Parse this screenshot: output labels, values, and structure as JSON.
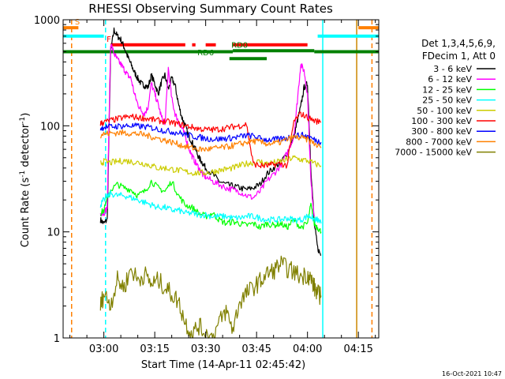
{
  "chart_data": {
    "type": "line",
    "title": "RHESSI Observing Summary Count Rates",
    "xlabel": "Start Time (14-Apr-11 02:45:42)",
    "ylabel_main": "Count Rate (s",
    "ylabel_sup1": "-1",
    "ylabel_mid": " detector",
    "ylabel_sup2": "-1",
    "ylabel_end": ")",
    "yscale": "log",
    "ylim": [
      1,
      1000
    ],
    "xlim_minutes": [
      -12,
      81
    ],
    "xticks": [
      {
        "label": "03:00",
        "t": 0
      },
      {
        "label": "03:15",
        "t": 15
      },
      {
        "label": "03:30",
        "t": 30
      },
      {
        "label": "03:45",
        "t": 45
      },
      {
        "label": "04:00",
        "t": 60
      },
      {
        "label": "04:15",
        "t": 75
      }
    ],
    "yticks": [
      {
        "label": "1",
        "v": 1
      },
      {
        "label": "10",
        "v": 10
      },
      {
        "label": "100",
        "v": 100
      },
      {
        "label": "1000",
        "v": 1000
      }
    ],
    "legend_header": [
      "Det 1,3,4,5,6,9,",
      "FDecim 1, Att 0"
    ],
    "series": [
      {
        "name": "3 - 6 keV",
        "color": "#000000",
        "t": [
          -1,
          0,
          1,
          2,
          3,
          4,
          5,
          6,
          7,
          8,
          9,
          10,
          11,
          12,
          13,
          14,
          15,
          16,
          17,
          18,
          19,
          20,
          21,
          22,
          23,
          24,
          25,
          26,
          27,
          28,
          29,
          30,
          32,
          34,
          36,
          38,
          40,
          42,
          44,
          46,
          48,
          50,
          52,
          54,
          56,
          57,
          58,
          59,
          60,
          61,
          62,
          63,
          64
        ],
        "v": [
          13,
          12,
          13,
          500,
          800,
          700,
          650,
          550,
          450,
          380,
          320,
          280,
          250,
          240,
          230,
          300,
          250,
          200,
          260,
          300,
          220,
          280,
          240,
          160,
          120,
          100,
          80,
          70,
          60,
          50,
          45,
          40,
          35,
          30,
          28,
          27,
          26,
          25,
          26,
          28,
          35,
          40,
          45,
          55,
          80,
          110,
          150,
          230,
          250,
          40,
          12,
          7,
          6
        ]
      },
      {
        "name": "6 - 12 keV",
        "color": "#ff00ff",
        "t": [
          -1,
          0,
          1,
          2,
          3,
          4,
          5,
          6,
          7,
          8,
          9,
          10,
          11,
          12,
          13,
          14,
          15,
          16,
          17,
          18,
          19,
          20,
          21,
          22,
          23,
          24,
          25,
          26,
          27,
          28,
          29,
          30,
          32,
          34,
          36,
          38,
          40,
          42,
          44,
          46,
          48,
          50,
          52,
          54,
          56,
          57,
          58,
          59,
          60,
          61,
          62
        ],
        "v": [
          15,
          15,
          17,
          600,
          480,
          420,
          380,
          340,
          300,
          280,
          200,
          160,
          140,
          130,
          150,
          250,
          200,
          160,
          120,
          100,
          350,
          180,
          130,
          110,
          95,
          80,
          62,
          52,
          45,
          40,
          35,
          33,
          30,
          28,
          26,
          25,
          24,
          22,
          21,
          24,
          30,
          35,
          42,
          55,
          80,
          170,
          380,
          330,
          200,
          30,
          14
        ]
      },
      {
        "name": "12 - 25 keV",
        "color": "#00ff00",
        "t": [
          -1,
          0,
          2,
          4,
          6,
          8,
          10,
          12,
          14,
          16,
          18,
          20,
          22,
          24,
          26,
          28,
          30,
          32,
          34,
          36,
          38,
          40,
          42,
          44,
          46,
          48,
          50,
          52,
          54,
          56,
          58,
          60,
          61,
          62,
          63,
          64
        ],
        "v": [
          15,
          16,
          25,
          28,
          26,
          25,
          22,
          24,
          30,
          26,
          24,
          30,
          22,
          18,
          17,
          15,
          14,
          15,
          13,
          12,
          12.5,
          12,
          11.5,
          12,
          11,
          12,
          11.5,
          12,
          11,
          13,
          11,
          12,
          18,
          12,
          11,
          10
        ]
      },
      {
        "name": "25 - 50 keV",
        "color": "#00ffff",
        "t": [
          -1,
          0,
          2,
          4,
          6,
          8,
          10,
          12,
          14,
          16,
          18,
          20,
          22,
          24,
          26,
          28,
          30,
          32,
          34,
          36,
          38,
          40,
          42,
          44,
          46,
          48,
          50,
          52,
          54,
          56,
          58,
          60,
          61,
          62,
          63,
          64
        ],
        "v": [
          18,
          20,
          23,
          22,
          22,
          21,
          20,
          19,
          18,
          17,
          17,
          16,
          16,
          15,
          15,
          14.5,
          14.5,
          14,
          14,
          14,
          13.5,
          13.5,
          14,
          14,
          13.5,
          13,
          13,
          13,
          13.5,
          13,
          13,
          14,
          14,
          13,
          13,
          12
        ]
      },
      {
        "name": "50 - 100 keV",
        "color": "#cccc00",
        "t": [
          -1,
          0,
          2,
          4,
          6,
          8,
          10,
          12,
          14,
          16,
          18,
          20,
          22,
          24,
          26,
          28,
          30,
          32,
          34,
          36,
          38,
          40,
          42,
          44,
          46,
          48,
          50,
          52,
          54,
          56,
          58,
          60,
          62,
          64
        ],
        "v": [
          44,
          46,
          45,
          46,
          47,
          46,
          45,
          44,
          42,
          40,
          40,
          39,
          38,
          37,
          36,
          36,
          36,
          37,
          38,
          39,
          40,
          42,
          44,
          45,
          46,
          44,
          45,
          46,
          48,
          50,
          48,
          47,
          44,
          42
        ]
      },
      {
        "name": "100 - 300 keV",
        "color": "#ff0000",
        "t": [
          -1,
          0,
          2,
          4,
          6,
          8,
          10,
          12,
          14,
          16,
          18,
          20,
          22,
          24,
          26,
          28,
          30,
          32,
          34,
          36,
          38,
          40,
          42,
          44,
          46,
          48,
          50,
          52,
          54,
          56,
          58,
          60,
          62,
          64
        ],
        "v": [
          105,
          108,
          112,
          116,
          120,
          122,
          120,
          118,
          115,
          112,
          110,
          107,
          104,
          100,
          97,
          94,
          92,
          92,
          93,
          95,
          98,
          100,
          104,
          44,
          42,
          42,
          43,
          44,
          42,
          110,
          130,
          120,
          112,
          108
        ]
      },
      {
        "name": "300 - 800 keV",
        "color": "#0000ff",
        "t": [
          -1,
          0,
          2,
          4,
          6,
          8,
          10,
          12,
          14,
          16,
          18,
          20,
          22,
          24,
          26,
          28,
          30,
          32,
          34,
          36,
          38,
          40,
          42,
          44,
          46,
          48,
          50,
          52,
          54,
          56,
          58,
          60,
          62,
          64
        ],
        "v": [
          95,
          97,
          98,
          99,
          100,
          100,
          99,
          98,
          96,
          93,
          90,
          88,
          86,
          83,
          80,
          78,
          76,
          75,
          75,
          76,
          77,
          79,
          81,
          80,
          76,
          74,
          74,
          75,
          77,
          80,
          82,
          80,
          74,
          70
        ]
      },
      {
        "name": "800 - 7000 keV",
        "color": "#ff8000",
        "t": [
          -1,
          0,
          2,
          4,
          6,
          8,
          10,
          12,
          14,
          16,
          18,
          20,
          22,
          24,
          26,
          28,
          30,
          32,
          34,
          36,
          38,
          40,
          42,
          44,
          46,
          48,
          50,
          52,
          54,
          56,
          58,
          60,
          62,
          64
        ],
        "v": [
          82,
          84,
          85,
          86,
          86,
          85,
          84,
          82,
          79,
          76,
          73,
          70,
          67,
          64,
          62,
          60,
          60,
          61,
          62,
          63,
          65,
          67,
          70,
          72,
          70,
          68,
          68,
          70,
          74,
          78,
          77,
          74,
          68,
          62
        ]
      },
      {
        "name": "7000 - 15000 keV",
        "color": "#808000",
        "t": [
          -1,
          0,
          2,
          4,
          6,
          8,
          10,
          12,
          14,
          16,
          18,
          20,
          22,
          24,
          26,
          28,
          30,
          32,
          34,
          36,
          38,
          40,
          42,
          44,
          46,
          48,
          50,
          52,
          54,
          56,
          58,
          60,
          61,
          62,
          63,
          64
        ],
        "v": [
          2,
          2.6,
          2.1,
          3.5,
          3.0,
          4.5,
          3.5,
          4.0,
          3.2,
          3.5,
          3.0,
          2.6,
          2.2,
          1.4,
          1.1,
          1.3,
          1.1,
          1.0,
          1.4,
          1.8,
          1.2,
          2.2,
          2.6,
          3.0,
          3.4,
          4.0,
          4.3,
          5.0,
          4.5,
          4.2,
          3.8,
          4.0,
          3.6,
          3.0,
          2.6,
          2.5
        ]
      }
    ],
    "flags": [
      {
        "name": "S",
        "label": "S",
        "color": "#ff8000",
        "level": 840,
        "segments": [
          [
            -12,
            -7.5
          ]
        ],
        "label_at": -7.8
      },
      {
        "name": "F",
        "label": "F",
        "color": "#ff0000",
        "level": 580,
        "segments": [
          [
            2,
            24
          ],
          [
            26,
            27
          ],
          [
            30,
            33
          ],
          [
            38,
            60
          ]
        ],
        "label_at": 1.5
      },
      {
        "name": "RD0",
        "label": "RD0",
        "color": "#008000",
        "level": 510,
        "segments": [
          [
            38,
            62
          ]
        ],
        "label_at": 40
      },
      {
        "name": "RD6",
        "label": "RD6",
        "color": "#008000",
        "level": 430,
        "segments": [
          [
            37,
            48
          ]
        ],
        "label_at": 30
      },
      {
        "name": "eclipse-top",
        "label": "",
        "color": "#00ffff",
        "level": 700,
        "segments": [
          [
            -12,
            0
          ],
          [
            63,
            81
          ]
        ],
        "label_at": null
      },
      {
        "name": "green-top",
        "label": "",
        "color": "#008000",
        "level": 500,
        "segments": [
          [
            -12,
            38
          ],
          [
            62,
            81
          ]
        ],
        "label_at": null
      },
      {
        "name": "orange-right",
        "label": "",
        "color": "#ff8000",
        "level": 840,
        "segments": [
          [
            75,
            81
          ]
        ],
        "label_at": null
      }
    ],
    "vlines": [
      {
        "t": -9.5,
        "color": "#ff8000",
        "dashed": true
      },
      {
        "t": 0.5,
        "color": "#00ffff",
        "dashed": true
      },
      {
        "t": 64.5,
        "color": "#00ffff",
        "dashed": false
      },
      {
        "t": 74.5,
        "color": "#cc8800",
        "dashed": false
      },
      {
        "t": 79,
        "color": "#ff8000",
        "dashed": true
      }
    ],
    "footer_date": "16-Oct-2021 10:47"
  }
}
